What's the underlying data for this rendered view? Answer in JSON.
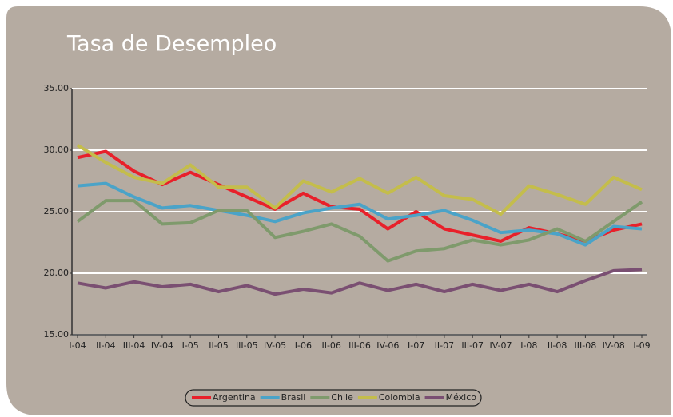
{
  "chart_data": {
    "type": "line",
    "title": "Tasa de Desempleo",
    "categories": [
      "I-04",
      "II-04",
      "III-04",
      "IV-04",
      "I-05",
      "II-05",
      "III-05",
      "IV-05",
      "I-06",
      "II-06",
      "III-06",
      "IV-06",
      "I-07",
      "II-07",
      "III-07",
      "IV-07",
      "I-08",
      "II-08",
      "III-08",
      "IV-08",
      "I-09"
    ],
    "series": [
      {
        "name": "Argentina",
        "color": "#e8202a",
        "values": [
          29.4,
          29.9,
          28.3,
          27.2,
          28.2,
          27.2,
          26.2,
          25.2,
          26.5,
          25.4,
          25.2,
          23.6,
          25.0,
          23.6,
          23.1,
          22.6,
          23.7,
          23.2,
          22.6,
          23.5,
          24.0
        ]
      },
      {
        "name": "Brasil",
        "color": "#4aa3c8",
        "values": [
          27.1,
          27.3,
          26.2,
          25.3,
          25.5,
          25.1,
          24.7,
          24.2,
          24.9,
          25.3,
          25.6,
          24.4,
          24.7,
          25.1,
          24.3,
          23.3,
          23.5,
          23.2,
          22.3,
          23.8,
          23.6
        ]
      },
      {
        "name": "Chile",
        "color": "#7f9a6c",
        "values": [
          24.2,
          25.9,
          25.9,
          24.0,
          24.1,
          25.1,
          25.1,
          22.9,
          23.4,
          24.0,
          23.0,
          21.0,
          21.8,
          22.0,
          22.7,
          22.3,
          22.7,
          23.6,
          22.6,
          24.2,
          25.8
        ]
      },
      {
        "name": "Colombia",
        "color": "#c4bd4b",
        "values": [
          30.4,
          29.0,
          27.8,
          27.3,
          28.8,
          27.0,
          27.0,
          25.3,
          27.5,
          26.6,
          27.7,
          26.5,
          27.8,
          26.3,
          26.0,
          24.8,
          27.1,
          26.4,
          25.6,
          27.8,
          26.8
        ]
      },
      {
        "name": "México",
        "color": "#7a4f72",
        "values": [
          19.2,
          18.8,
          19.3,
          18.9,
          19.1,
          18.5,
          19.0,
          18.3,
          18.7,
          18.4,
          19.2,
          18.6,
          19.1,
          18.5,
          19.1,
          18.6,
          19.1,
          18.5,
          19.4,
          20.2,
          20.3
        ]
      }
    ],
    "ylim": [
      15,
      35
    ],
    "yticks": [
      {
        "value": 15,
        "label": "15.00"
      },
      {
        "value": 20,
        "label": "20.00"
      },
      {
        "value": 25,
        "label": "25.00"
      },
      {
        "value": 30,
        "label": "30.00"
      },
      {
        "value": 35,
        "label": "35.00"
      }
    ],
    "grid": true,
    "legend": "bottom"
  }
}
